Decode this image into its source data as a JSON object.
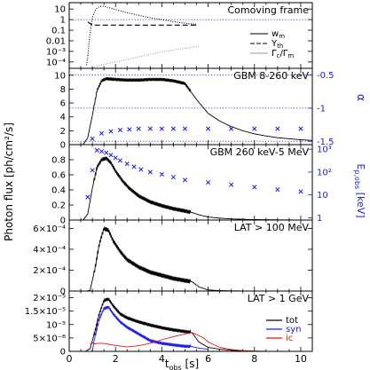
{
  "figure": {
    "xlabel_main": "t",
    "xlabel_sub": "obs",
    "xlabel_unit": " [s]",
    "ylabel_left": "Photon flux [ph/cm²/s]",
    "ylabel_right_alpha": "α",
    "ylabel_right_ep_main": "E",
    "ylabel_right_ep_sub": "p,obs",
    "ylabel_right_ep_unit": " [keV]"
  },
  "colors": {
    "black": "#000000",
    "blue": "#1a1aee",
    "red": "#ee1111",
    "grey": "#999999"
  },
  "chart_data": [
    {
      "type": "line",
      "title": "Comoving frame",
      "ylog": true,
      "xlim": [
        0,
        10.5
      ],
      "ylim_log10": [
        -4.6,
        1.6
      ],
      "yticks": [
        {
          "value": 10,
          "label": "10"
        },
        {
          "value": 1,
          "label": "1"
        },
        {
          "value": 0.1,
          "label": "0.1"
        },
        {
          "value": 0.01,
          "label": "0.01"
        },
        {
          "value": 0.001,
          "label": "10⁻³"
        },
        {
          "value": 0.0001,
          "label": "10⁻⁴"
        }
      ],
      "legend": [
        "w",
        "Y",
        "Γ"
      ],
      "legend_labels": [
        {
          "main": "w",
          "sub": "m",
          "tail": ""
        },
        {
          "main": "Y",
          "sub": "th",
          "tail": ""
        },
        {
          "main": "Γ",
          "sub": "c",
          "tail": "/Γ",
          "sub2": "m"
        }
      ],
      "legend_placement": "bottom-right",
      "series": [
        {
          "key": "w_m",
          "style": "dotted",
          "color": "black",
          "x": [
            0.75,
            0.8,
            0.9,
            1.0,
            1.1,
            1.2,
            1.3,
            1.5,
            1.7,
            2.0,
            2.5,
            3.0,
            3.5,
            4.0,
            4.5,
            5.0,
            5.5
          ],
          "y": [
            5e-05,
            0.0003,
            0.05,
            1.5,
            6,
            12,
            17,
            18,
            14,
            9,
            4.5,
            2.5,
            1.5,
            1.0,
            0.65,
            0.45,
            0.35
          ]
        },
        {
          "key": "Y_th",
          "style": "dashed",
          "color": "black",
          "x": [
            0.8,
            1.0,
            5.6
          ],
          "y": [
            0.6,
            0.3,
            0.3
          ]
        },
        {
          "key": "Gamma_c/Gamma_m",
          "style": "dotted",
          "color": "grey",
          "x": [
            0.8,
            1.0,
            1.5,
            2.0,
            3.0,
            4.0,
            5.0,
            5.6
          ],
          "y": [
            2e-05,
            3e-05,
            6e-05,
            0.0001,
            0.0003,
            0.0009,
            0.002,
            0.003
          ]
        }
      ],
      "hlines": [
        {
          "y": 1,
          "style": "dotted",
          "color": "blue"
        }
      ]
    },
    {
      "type": "line",
      "title": "GBM 8-260 keV",
      "xlim": [
        0,
        10.5
      ],
      "ylim": [
        0,
        11
      ],
      "yticks": [
        0,
        2,
        4,
        6,
        8,
        10
      ],
      "right_axis": {
        "label": "α",
        "ticks": [
          -0.5,
          -1,
          -1.5
        ],
        "ylim": [
          -1.55,
          -0.4
        ],
        "color": "blue"
      },
      "series": [
        {
          "key": "flux",
          "style": "solid",
          "color": "black",
          "wiggle": 0.45,
          "x": [
            0.6,
            0.8,
            1.0,
            1.2,
            1.4,
            1.6,
            2.0,
            2.5,
            3.0,
            3.5,
            4.0,
            4.5,
            5.0,
            5.5,
            6.0,
            6.5,
            7.0,
            7.5,
            8.0,
            8.5,
            9.0,
            9.5,
            10.0,
            10.5
          ],
          "y": [
            0,
            1.0,
            4.2,
            7.8,
            9.2,
            9.5,
            9.4,
            9.3,
            9.3,
            9.4,
            9.4,
            9.2,
            8.8,
            6.5,
            4.5,
            3.4,
            2.6,
            2.0,
            1.55,
            1.25,
            1.0,
            0.85,
            0.7,
            0.6
          ]
        },
        {
          "key": "alpha",
          "style": "markers",
          "marker": "x",
          "color": "blue",
          "axis": "right",
          "x": [
            1.0,
            1.4,
            1.8,
            2.2,
            2.6,
            3.0,
            3.5,
            4.0,
            4.5,
            5.0,
            6.0,
            7.0,
            8.0,
            9.0,
            10.0
          ],
          "y": [
            -1.46,
            -1.38,
            -1.35,
            -1.33,
            -1.32,
            -1.31,
            -1.31,
            -1.31,
            -1.31,
            -1.31,
            -1.31,
            -1.31,
            -1.31,
            -1.31,
            -1.31
          ]
        }
      ],
      "hlines": [
        {
          "y": -0.5,
          "style": "dotted",
          "color": "blue",
          "axis": "right"
        },
        {
          "y": -1,
          "style": "dotted",
          "color": "blue",
          "axis": "right"
        },
        {
          "y": -1.5,
          "style": "dotted",
          "color": "blue",
          "axis": "right"
        }
      ]
    },
    {
      "type": "line",
      "title": "GBM 260 keV-5 MeV",
      "xlim": [
        0,
        10.5
      ],
      "ylim": [
        0,
        1
      ],
      "yticks": [
        0,
        0.2,
        0.4,
        0.6,
        0.8
      ],
      "right_axis": {
        "label": "E",
        "ylog": true,
        "ticks": [
          1000,
          100,
          10,
          1
        ],
        "tick_labels": [
          "10³",
          "10²",
          "10",
          "1"
        ],
        "ylim_log10": [
          -0.1,
          3.2
        ],
        "color": "blue"
      },
      "series": [
        {
          "key": "flux",
          "style": "solid",
          "color": "black",
          "wiggle": 0.05,
          "x": [
            0.6,
            0.8,
            1.0,
            1.2,
            1.4,
            1.6,
            1.8,
            2.0,
            2.3,
            2.6,
            3.0,
            3.5,
            4.0,
            4.5,
            5.0,
            5.3,
            5.6,
            6.0,
            6.5,
            7.0,
            7.5,
            8.0,
            9.0,
            10.0,
            10.5
          ],
          "y": [
            0,
            0.08,
            0.42,
            0.7,
            0.8,
            0.82,
            0.76,
            0.65,
            0.52,
            0.42,
            0.32,
            0.24,
            0.19,
            0.15,
            0.12,
            0.1,
            0.07,
            0.04,
            0.025,
            0.015,
            0.01,
            0.006,
            0.003,
            0.001,
            0
          ]
        },
        {
          "key": "Ep",
          "style": "markers",
          "marker": "x",
          "color": "blue",
          "axis": "right",
          "x": [
            0.8,
            1.0,
            1.2,
            1.4,
            1.6,
            1.8,
            2.0,
            2.2,
            2.5,
            2.8,
            3.1,
            3.5,
            4.0,
            4.5,
            5.0,
            6.0,
            7.0,
            8.0,
            9.0,
            10.0
          ],
          "y": [
            8,
            120,
            900,
            800,
            700,
            550,
            420,
            320,
            230,
            170,
            130,
            100,
            80,
            60,
            45,
            35,
            28,
            22,
            17,
            14
          ]
        }
      ]
    },
    {
      "type": "line",
      "title": "LAT > 100 MeV",
      "xlim": [
        0,
        10.5
      ],
      "ylim": [
        0,
        0.00068
      ],
      "yticks": [
        0,
        0.0002,
        0.0004,
        0.0006
      ],
      "ytick_labels": [
        "0",
        "2×10⁻⁴",
        "4×10⁻⁴",
        "6×10⁻⁴"
      ],
      "series": [
        {
          "key": "flux",
          "style": "solid",
          "color": "black",
          "wiggle": 4e-05,
          "x": [
            0.7,
            0.9,
            1.1,
            1.3,
            1.5,
            1.7,
            1.9,
            2.2,
            2.5,
            3.0,
            3.5,
            4.0,
            4.5,
            5.0,
            5.3,
            5.6,
            6.0,
            6.5,
            7.0,
            7.5,
            8.0,
            9.0,
            10.0,
            10.5
          ],
          "y": [
            0,
            5e-06,
            0.0002,
            0.00045,
            0.0006,
            0.00058,
            0.00048,
            0.00038,
            0.0003,
            0.00023,
            0.00018,
            0.00015,
            0.00012,
            0.0001,
            9e-05,
            4e-05,
            1e-05,
            4e-06,
            2e-06,
            1e-06,
            0,
            0,
            0,
            0
          ]
        }
      ]
    },
    {
      "type": "line",
      "title": "LAT > 1 GeV",
      "xlim": [
        0,
        10.5
      ],
      "ylim": [
        0,
        2.25e-05
      ],
      "yticks": [
        0,
        5e-06,
        1e-05,
        1.5e-05,
        2e-05
      ],
      "ytick_labels": [
        "0",
        "5×10⁻⁶",
        "10⁻⁵",
        "1.5×10⁻⁵",
        "2×10⁻⁵"
      ],
      "xticks": [
        0,
        2,
        4,
        6,
        8,
        10
      ],
      "legend": [
        "tot",
        "syn",
        "ic"
      ],
      "legend_placement": "bottom-right",
      "series": [
        {
          "key": "tot",
          "name": "tot",
          "style": "solid",
          "color": "black",
          "wiggle": 1.2e-06,
          "x": [
            0.7,
            0.9,
            1.1,
            1.3,
            1.5,
            1.7,
            1.9,
            2.2,
            2.5,
            3.0,
            3.5,
            4.0,
            4.5,
            5.0,
            5.3,
            5.6,
            6.0,
            6.5,
            7.0,
            7.5,
            8.0,
            9.0,
            10.0,
            10.5
          ],
          "y": [
            0,
            1e-06,
            7e-06,
            1.4e-05,
            1.9e-05,
            1.95e-05,
            1.7e-05,
            1.4e-05,
            1.25e-05,
            1.1e-05,
            9.8e-06,
            8.8e-06,
            8e-06,
            7.4e-06,
            7e-06,
            3.5e-06,
            1.5e-06,
            8e-07,
            4e-07,
            2e-07,
            1e-07,
            0,
            0,
            0
          ]
        },
        {
          "key": "syn",
          "name": "syn",
          "style": "solid",
          "color": "blue",
          "wiggle": 1.1e-06,
          "x": [
            1.0,
            1.1,
            1.3,
            1.5,
            1.7,
            1.9,
            2.2,
            2.5,
            3.0,
            3.5,
            4.0,
            4.5,
            5.0,
            5.3,
            5.6,
            6.0
          ],
          "y": [
            0,
            5e-06,
            1.2e-05,
            1.6e-05,
            1.65e-05,
            1.4e-05,
            1.1e-05,
            9e-06,
            6.5e-06,
            4e-06,
            3e-06,
            2.4e-06,
            1.9e-06,
            1.8e-06,
            1.2e-06,
            8e-07
          ]
        },
        {
          "key": "ic",
          "name": "ic",
          "style": "solid",
          "color": "red",
          "x": [
            0.9,
            1.0,
            1.1,
            1.3,
            1.5,
            2.0,
            2.5,
            3.0,
            3.5,
            4.0,
            4.5,
            5.0,
            5.3,
            5.5,
            5.8,
            6.0,
            6.5,
            7.0,
            7.5,
            8.0
          ],
          "y": [
            2.8e-06,
            3.2e-06,
            2.8e-06,
            3e-06,
            3e-06,
            2.2e-06,
            1.7e-06,
            2.1e-06,
            3e-06,
            4.3e-06,
            5.5e-06,
            6.5e-06,
            7e-06,
            6.3e-06,
            5e-06,
            3.5e-06,
            1.5e-06,
            7e-07,
            3e-07,
            1e-07
          ]
        }
      ]
    }
  ]
}
